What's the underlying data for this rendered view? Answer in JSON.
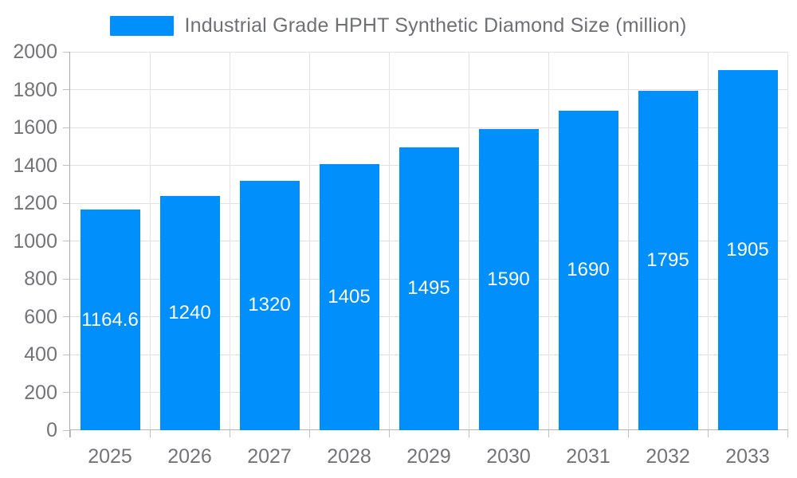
{
  "chart_data": {
    "type": "bar",
    "title": "Industrial Grade HPHT Synthetic Diamond Size (million)",
    "categories": [
      "2025",
      "2026",
      "2027",
      "2028",
      "2029",
      "2030",
      "2031",
      "2032",
      "2033"
    ],
    "values": [
      1164.6,
      1240,
      1320,
      1405,
      1495,
      1590,
      1690,
      1795,
      1905
    ],
    "value_labels": [
      "1164.6",
      "1240",
      "1320",
      "1405",
      "1495",
      "1590",
      "1690",
      "1795",
      "1905"
    ],
    "xlabel": "",
    "ylabel": "",
    "ylim": [
      0,
      2000
    ],
    "ytick_step": 200,
    "ytick_labels": [
      "0",
      "200",
      "400",
      "600",
      "800",
      "1000",
      "1200",
      "1400",
      "1600",
      "1800",
      "2000"
    ],
    "grid": true,
    "legend_position": "top-center",
    "bar_color": "#008FFB",
    "data_label_color": "#ffffff",
    "axis_text_color": "#747478",
    "grid_color": "#e2e2e2",
    "axis_line_color": "#b3b3b9"
  }
}
